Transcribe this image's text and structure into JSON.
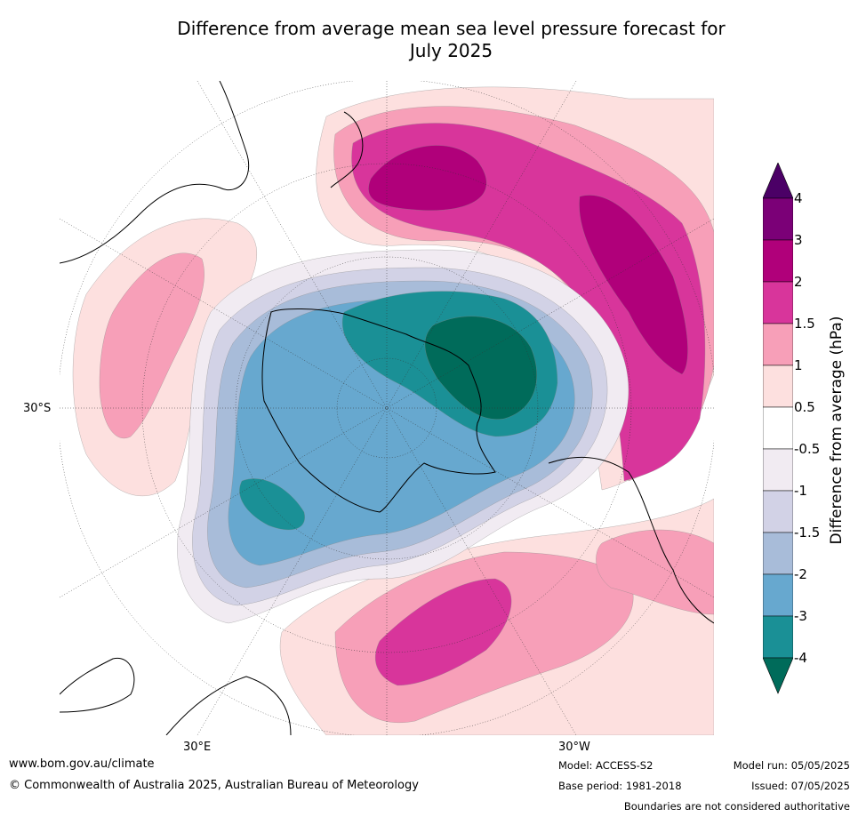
{
  "title": {
    "line1": "Difference from average mean sea level pressure forecast for",
    "line2": "July 2025"
  },
  "map": {
    "projection": "south-polar-stereographic",
    "lat_labels": [
      "30°S"
    ],
    "lon_labels": [
      "30°E",
      "30°W"
    ],
    "colors": {
      "plus_4": "#4b0066",
      "plus_3": "#7b0077",
      "plus_2": "#b0007a",
      "plus_1_5": "#d8359b",
      "plus_1": "#f79fb8",
      "plus_0_5": "#fde0df",
      "minus_0_5": "#f1ebf2",
      "minus_1": "#d2d2e6",
      "minus_1_5": "#a8bcd9",
      "minus_2": "#67a8cf",
      "minus_3": "#1a9096",
      "minus_4": "#006b5a"
    }
  },
  "colorbar": {
    "label": "Difference from average (hPa)",
    "ticks": [
      "4",
      "3",
      "2",
      "1.5",
      "1",
      "0.5",
      "-0.5",
      "-1",
      "-1.5",
      "-2",
      "-3",
      "-4"
    ],
    "segment_colors": [
      "#7b0077",
      "#b0007a",
      "#d8359b",
      "#f79fb8",
      "#fde0df",
      "#ffffff",
      "#f1ebf2",
      "#d2d2e6",
      "#a8bcd9",
      "#67a8cf",
      "#1a9096"
    ],
    "top_arrow_color": "#4b0066",
    "bottom_arrow_color": "#006b5a"
  },
  "footer": {
    "website": "www.bom.gov.au/climate",
    "copyright": "© Commonwealth of Australia 2025, Australian Bureau of Meteorology",
    "model": "Model: ACCESS-S2",
    "base_period": "Base period: 1981-2018",
    "model_run": "Model run: 05/05/2025",
    "issued": "Issued: 07/05/2025",
    "disclaimer": "Boundaries are not considered authoritative"
  }
}
